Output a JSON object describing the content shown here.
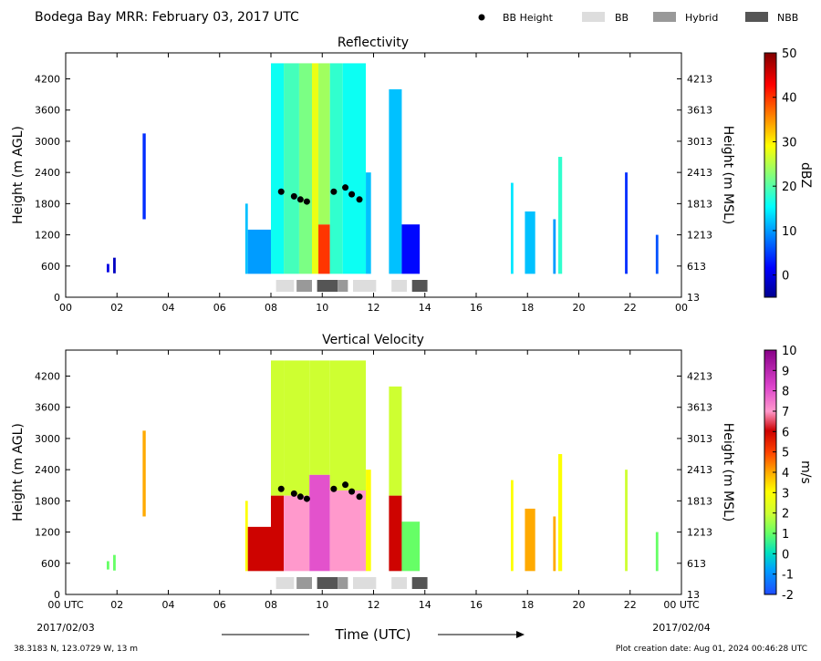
{
  "header": {
    "title": "Bodega Bay MRR:  February 03, 2017 UTC",
    "legend": [
      {
        "label": "BB Height",
        "kind": "marker",
        "color": "#000000"
      },
      {
        "label": "BB",
        "kind": "swatch",
        "color": "#dddddd"
      },
      {
        "label": "Hybrid",
        "kind": "swatch",
        "color": "#999999"
      },
      {
        "label": "NBB",
        "kind": "swatch",
        "color": "#555555"
      }
    ]
  },
  "footer": {
    "location": "38.3183 N, 123.0729 W, 13 m",
    "creation": "Plot creation date: Aug 01, 2024 00:46:28 UTC",
    "date_start": "2017/02/03",
    "date_end": "2017/02/04",
    "xlabel": "Time (UTC)"
  },
  "chart_data": [
    {
      "type": "heatmap",
      "title": "Reflectivity",
      "xlabel": "Time (UTC)",
      "ylabel": "Height (m AGL)",
      "ylabel_right": "Height (m MSL)",
      "colorbar_label": "dBZ",
      "colorbar_ticks": [
        "50",
        "40",
        "30",
        "20",
        "10",
        "0"
      ],
      "colorbar_range": [
        -5,
        50
      ],
      "colormap": "jet",
      "xlim": [
        0,
        24
      ],
      "ylim": [
        0,
        4700
      ],
      "x_ticks": [
        "00",
        "02",
        "04",
        "06",
        "08",
        "10",
        "12",
        "14",
        "16",
        "18",
        "20",
        "22",
        "00"
      ],
      "y_ticks_left": [
        "0",
        "600",
        "1200",
        "1800",
        "2400",
        "3000",
        "3600",
        "4200"
      ],
      "y_ticks_right": [
        "13",
        "613",
        "1213",
        "1813",
        "2413",
        "3013",
        "3613",
        "4213"
      ],
      "bb_height": [
        {
          "time": 8.4,
          "height": 2030
        },
        {
          "time": 8.9,
          "height": 1940
        },
        {
          "time": 9.15,
          "height": 1880
        },
        {
          "time": 9.4,
          "height": 1840
        },
        {
          "time": 10.45,
          "height": 2030
        },
        {
          "time": 10.9,
          "height": 2110
        },
        {
          "time": 11.15,
          "height": 1980
        },
        {
          "time": 11.45,
          "height": 1880
        }
      ],
      "bb_class": [
        {
          "start": 8.2,
          "end": 8.9,
          "class": "BB"
        },
        {
          "start": 9.0,
          "end": 9.6,
          "class": "Hybrid"
        },
        {
          "start": 9.8,
          "end": 10.6,
          "class": "NBB"
        },
        {
          "start": 10.6,
          "end": 11.0,
          "class": "Hybrid"
        },
        {
          "start": 11.2,
          "end": 12.1,
          "class": "BB"
        },
        {
          "start": 12.7,
          "end": 13.3,
          "class": "BB"
        },
        {
          "start": 13.5,
          "end": 14.1,
          "class": "NBB"
        }
      ],
      "bands": [
        {
          "t0": 1.6,
          "t1": 1.7,
          "ymin": 480,
          "ymax": 640,
          "v": 0
        },
        {
          "t0": 1.85,
          "t1": 1.95,
          "ymin": 460,
          "ymax": 760,
          "v": -2
        },
        {
          "t0": 3.0,
          "t1": 3.12,
          "ymin": 1500,
          "ymax": 3150,
          "v": 4
        },
        {
          "t0": 7.0,
          "t1": 7.1,
          "ymin": 450,
          "ymax": 1800,
          "v": 12
        },
        {
          "t0": 7.1,
          "t1": 8.0,
          "ymin": 450,
          "ymax": 1300,
          "v": 10
        },
        {
          "t0": 8.0,
          "t1": 8.5,
          "ymin": 450,
          "ymax": 4500,
          "v": 16
        },
        {
          "t0": 8.5,
          "t1": 9.1,
          "ymin": 450,
          "ymax": 4500,
          "v": 19
        },
        {
          "t0": 9.1,
          "t1": 9.6,
          "ymin": 450,
          "ymax": 4500,
          "v": 22
        },
        {
          "t0": 9.6,
          "t1": 9.85,
          "ymin": 450,
          "ymax": 4500,
          "v": 28
        },
        {
          "t0": 9.85,
          "t1": 10.3,
          "ymin": 450,
          "ymax": 1400,
          "v": 40
        },
        {
          "t0": 9.85,
          "t1": 10.3,
          "ymin": 1400,
          "ymax": 4500,
          "v": 24
        },
        {
          "t0": 10.3,
          "t1": 10.8,
          "ymin": 450,
          "ymax": 4500,
          "v": 18
        },
        {
          "t0": 10.8,
          "t1": 11.7,
          "ymin": 450,
          "ymax": 4500,
          "v": 16
        },
        {
          "t0": 11.7,
          "t1": 11.9,
          "ymin": 450,
          "ymax": 2400,
          "v": 12
        },
        {
          "t0": 12.6,
          "t1": 13.1,
          "ymin": 450,
          "ymax": 4000,
          "v": 12
        },
        {
          "t0": 13.1,
          "t1": 13.8,
          "ymin": 450,
          "ymax": 1400,
          "v": 2
        },
        {
          "t0": 17.35,
          "t1": 17.45,
          "ymin": 450,
          "ymax": 2200,
          "v": 14
        },
        {
          "t0": 17.9,
          "t1": 18.3,
          "ymin": 450,
          "ymax": 1650,
          "v": 12
        },
        {
          "t0": 19.0,
          "t1": 19.1,
          "ymin": 450,
          "ymax": 1500,
          "v": 10
        },
        {
          "t0": 19.2,
          "t1": 19.35,
          "ymin": 450,
          "ymax": 2700,
          "v": 18
        },
        {
          "t0": 21.8,
          "t1": 21.9,
          "ymin": 450,
          "ymax": 2400,
          "v": 4
        },
        {
          "t0": 23.0,
          "t1": 23.1,
          "ymin": 450,
          "ymax": 1200,
          "v": 6
        }
      ]
    },
    {
      "type": "heatmap",
      "title": "Vertical Velocity",
      "xlabel": "Time (UTC)",
      "ylabel": "Height (m AGL)",
      "ylabel_right": "Height (m MSL)",
      "colorbar_label": "m/s",
      "colorbar_ticks": [
        "10",
        "9",
        "8",
        "7",
        "6",
        "5",
        "4",
        "3",
        "2",
        "1",
        "0",
        "-1",
        "-2"
      ],
      "colorbar_range": [
        -2,
        10
      ],
      "colormap": "velocity",
      "xlim": [
        0,
        24
      ],
      "ylim": [
        0,
        4700
      ],
      "x_ticks": [
        "00 UTC",
        "02",
        "04",
        "06",
        "08",
        "10",
        "12",
        "14",
        "16",
        "18",
        "20",
        "22",
        "00 UTC"
      ],
      "y_ticks_left": [
        "0",
        "600",
        "1200",
        "1800",
        "2400",
        "3000",
        "3600",
        "4200"
      ],
      "y_ticks_right": [
        "13",
        "613",
        "1213",
        "1813",
        "2413",
        "3013",
        "3613",
        "4213"
      ],
      "bb_height": [
        {
          "time": 8.4,
          "height": 2030
        },
        {
          "time": 8.9,
          "height": 1940
        },
        {
          "time": 9.15,
          "height": 1880
        },
        {
          "time": 9.4,
          "height": 1840
        },
        {
          "time": 10.45,
          "height": 2030
        },
        {
          "time": 10.9,
          "height": 2110
        },
        {
          "time": 11.15,
          "height": 1980
        },
        {
          "time": 11.45,
          "height": 1880
        }
      ],
      "bb_class": [
        {
          "start": 8.2,
          "end": 8.9,
          "class": "BB"
        },
        {
          "start": 9.0,
          "end": 9.6,
          "class": "Hybrid"
        },
        {
          "start": 9.8,
          "end": 10.6,
          "class": "NBB"
        },
        {
          "start": 10.6,
          "end": 11.0,
          "class": "Hybrid"
        },
        {
          "start": 11.2,
          "end": 12.1,
          "class": "BB"
        },
        {
          "start": 12.7,
          "end": 13.3,
          "class": "BB"
        },
        {
          "start": 13.5,
          "end": 14.1,
          "class": "NBB"
        }
      ],
      "bands": [
        {
          "t0": 1.6,
          "t1": 1.7,
          "ymin": 480,
          "ymax": 640,
          "v": 1
        },
        {
          "t0": 1.85,
          "t1": 1.95,
          "ymin": 460,
          "ymax": 760,
          "v": 1
        },
        {
          "t0": 3.0,
          "t1": 3.12,
          "ymin": 1500,
          "ymax": 3150,
          "v": 4
        },
        {
          "t0": 7.0,
          "t1": 7.1,
          "ymin": 450,
          "ymax": 1800,
          "v": 3
        },
        {
          "t0": 7.1,
          "t1": 8.0,
          "ymin": 450,
          "ymax": 1300,
          "v": 6
        },
        {
          "t0": 8.0,
          "t1": 8.5,
          "ymin": 1900,
          "ymax": 4500,
          "v": 2
        },
        {
          "t0": 8.0,
          "t1": 8.5,
          "ymin": 450,
          "ymax": 1900,
          "v": 6
        },
        {
          "t0": 8.5,
          "t1": 9.5,
          "ymin": 1900,
          "ymax": 4500,
          "v": 2
        },
        {
          "t0": 8.5,
          "t1": 9.5,
          "ymin": 450,
          "ymax": 1900,
          "v": 7
        },
        {
          "t0": 9.5,
          "t1": 10.3,
          "ymin": 2300,
          "ymax": 4500,
          "v": 2
        },
        {
          "t0": 9.5,
          "t1": 10.3,
          "ymin": 450,
          "ymax": 2300,
          "v": 8
        },
        {
          "t0": 10.3,
          "t1": 11.7,
          "ymin": 2000,
          "ymax": 4500,
          "v": 2
        },
        {
          "t0": 10.3,
          "t1": 11.7,
          "ymin": 450,
          "ymax": 2000,
          "v": 7
        },
        {
          "t0": 11.7,
          "t1": 11.9,
          "ymin": 450,
          "ymax": 2400,
          "v": 3
        },
        {
          "t0": 12.6,
          "t1": 13.1,
          "ymin": 1900,
          "ymax": 4000,
          "v": 2
        },
        {
          "t0": 12.6,
          "t1": 13.1,
          "ymin": 450,
          "ymax": 1900,
          "v": 6
        },
        {
          "t0": 13.1,
          "t1": 13.8,
          "ymin": 450,
          "ymax": 1400,
          "v": 1
        },
        {
          "t0": 17.35,
          "t1": 17.45,
          "ymin": 450,
          "ymax": 2200,
          "v": 3
        },
        {
          "t0": 17.9,
          "t1": 18.3,
          "ymin": 450,
          "ymax": 1650,
          "v": 4
        },
        {
          "t0": 19.0,
          "t1": 19.1,
          "ymin": 450,
          "ymax": 1500,
          "v": 4
        },
        {
          "t0": 19.2,
          "t1": 19.35,
          "ymin": 450,
          "ymax": 2700,
          "v": 3
        },
        {
          "t0": 21.8,
          "t1": 21.9,
          "ymin": 450,
          "ymax": 2400,
          "v": 2
        },
        {
          "t0": 23.0,
          "t1": 23.1,
          "ymin": 450,
          "ymax": 1200,
          "v": 1
        }
      ]
    }
  ]
}
